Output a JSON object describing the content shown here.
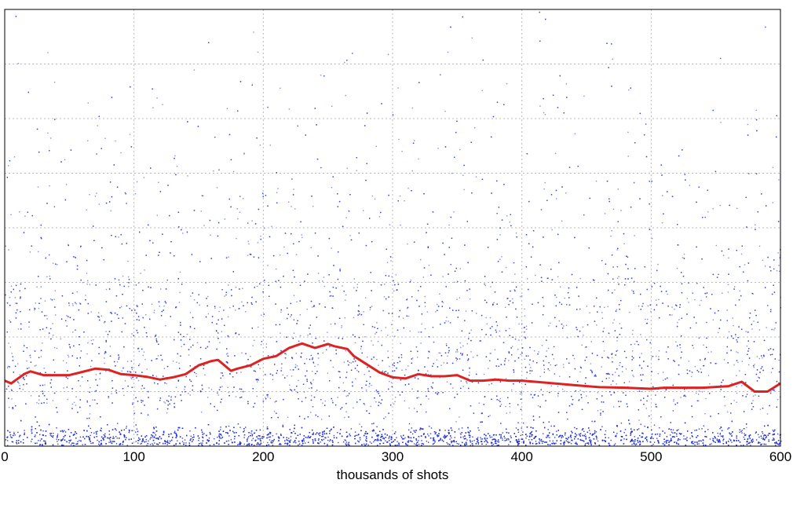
{
  "chart_data": {
    "type": "scatter",
    "title": "",
    "xlabel": "thousands of shots",
    "ylabel": "",
    "xlim": [
      0,
      600
    ],
    "ylim": [
      0,
      8
    ],
    "xticks": [
      0,
      100,
      200,
      300,
      400,
      500,
      600
    ],
    "xtick_labels": [
      "0",
      "100",
      "200",
      "300",
      "400",
      "500",
      "600"
    ],
    "grid": true,
    "legend": "none",
    "colors": {
      "scatter": "#1f2fe0",
      "trend": "#dd2222",
      "grid": "#b8b8b8"
    },
    "series": [
      {
        "kind": "scatter-density",
        "bands": [
          {
            "y": 0.15,
            "spread": 0.12,
            "weight": 0.36
          },
          {
            "y": 0.85,
            "spread": 0.18,
            "weight": 0.1
          },
          {
            "y": 1.45,
            "spread": 0.28,
            "weight": 0.2
          },
          {
            "y": 2.45,
            "spread": 0.45,
            "weight": 0.16
          },
          {
            "y": 3.4,
            "spread": 0.9,
            "weight": 0.1
          },
          {
            "y": 5.0,
            "spread": 1.5,
            "weight": 0.08
          }
        ]
      },
      {
        "kind": "line",
        "x": [
          0,
          5,
          15,
          20,
          30,
          50,
          60,
          70,
          80,
          90,
          100,
          110,
          120,
          130,
          140,
          150,
          160,
          165,
          175,
          180,
          190,
          200,
          210,
          220,
          230,
          240,
          250,
          255,
          265,
          270,
          280,
          290,
          300,
          310,
          320,
          330,
          340,
          350,
          360,
          370,
          380,
          390,
          400,
          420,
          440,
          460,
          480,
          500,
          510,
          520,
          540,
          560,
          570,
          580,
          590,
          600
        ],
        "y": [
          1.2,
          1.15,
          1.32,
          1.37,
          1.3,
          1.3,
          1.36,
          1.42,
          1.4,
          1.32,
          1.3,
          1.27,
          1.22,
          1.26,
          1.32,
          1.48,
          1.56,
          1.58,
          1.38,
          1.42,
          1.48,
          1.6,
          1.65,
          1.8,
          1.88,
          1.8,
          1.87,
          1.83,
          1.78,
          1.65,
          1.5,
          1.35,
          1.26,
          1.24,
          1.32,
          1.28,
          1.28,
          1.3,
          1.2,
          1.2,
          1.22,
          1.2,
          1.2,
          1.16,
          1.12,
          1.08,
          1.07,
          1.05,
          1.07,
          1.07,
          1.07,
          1.1,
          1.18,
          1.0,
          1.0,
          1.15
        ]
      }
    ]
  }
}
